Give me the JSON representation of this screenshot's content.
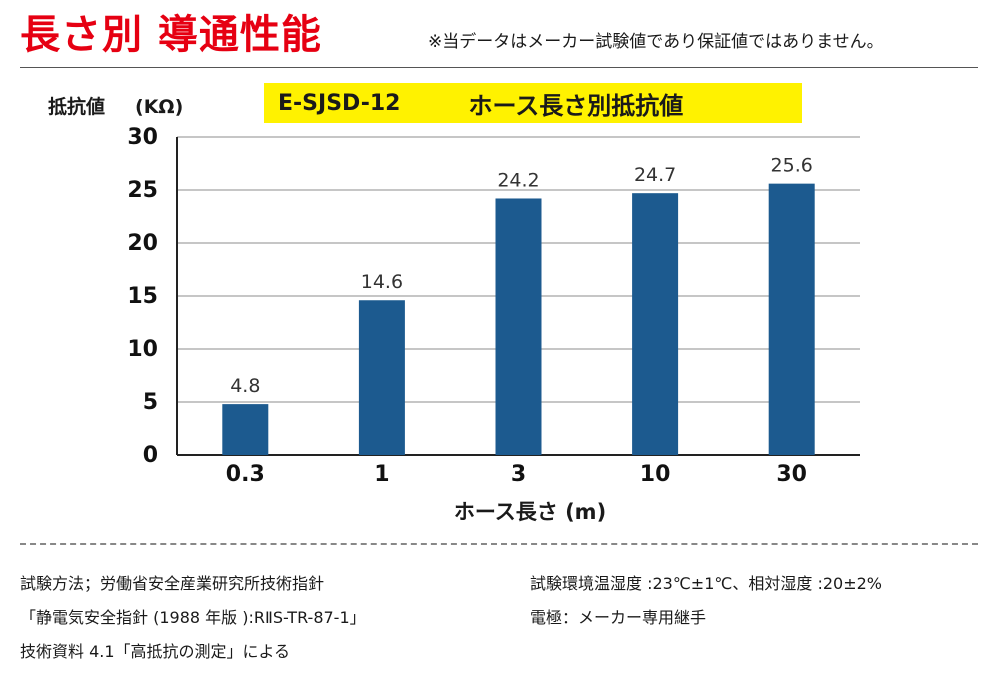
{
  "header": {
    "title": "長さ別 導通性能",
    "disclaimer": "※当データはメーカー試験値であり保証値ではありません。"
  },
  "chart_data": {
    "type": "bar",
    "model": "E-SJSD-12",
    "subtitle": "ホース長さ別抵抗値",
    "ylabel": "抵抗値",
    "yunit": "(KΩ)",
    "xlabel": "ホース長さ (m)",
    "categories": [
      "0.3",
      "1",
      "3",
      "10",
      "30"
    ],
    "values": [
      4.8,
      14.6,
      24.2,
      24.7,
      25.6
    ],
    "data_labels": [
      "4.8",
      "14.6",
      "24.2",
      "24.7",
      "25.6"
    ],
    "ylim": [
      0,
      30
    ],
    "yticks": [
      "0",
      "5",
      "10",
      "15",
      "20",
      "25",
      "30"
    ],
    "grid": true,
    "bar_color": "#1c5a8f"
  },
  "notes": {
    "method_1": "試験方法；労働省安全産業研究所技術指針",
    "method_2": "「静電気安全指針 (1988 年版 ):RⅡS-TR-87-1」",
    "method_3": "技術資料 4.1「高抵抗の測定」による",
    "environment": "試験環境温湿度 :23℃±1℃、相対湿度 :20±2%",
    "electrode": "電極：メーカー専用継手"
  }
}
